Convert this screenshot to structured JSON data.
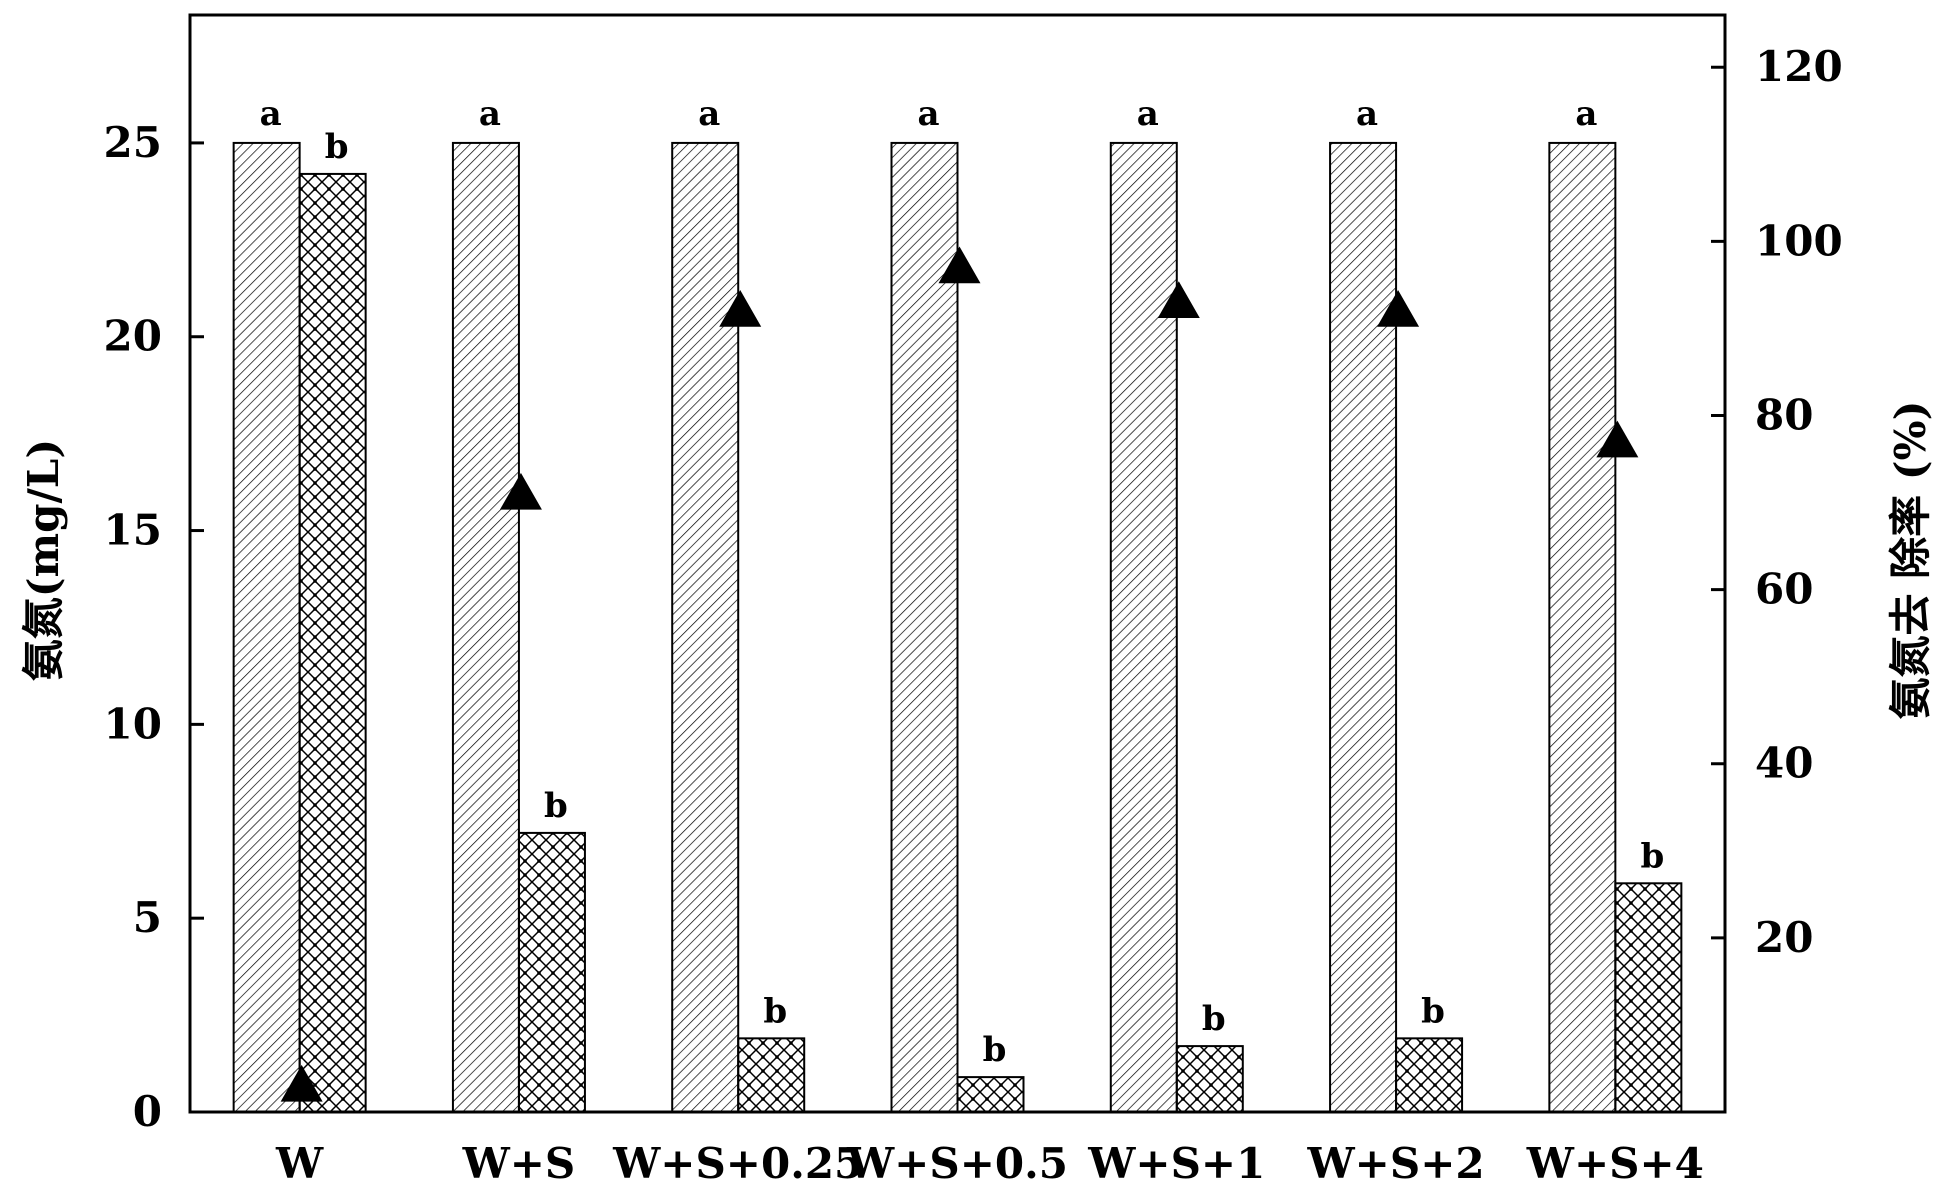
{
  "chart_data": {
    "type": "bar",
    "categories": [
      "W",
      "W+S",
      "W+S+0.25",
      "W+S+0.5",
      "W+S+1",
      "W+S+2",
      "W+S+4"
    ],
    "series": [
      {
        "values": [
          25,
          25,
          25,
          25,
          25,
          25,
          25
        ],
        "pattern": "diagonal-lines",
        "axis": "left"
      },
      {
        "values": [
          24.2,
          7.2,
          1.9,
          0.9,
          1.7,
          1.9,
          5.9
        ],
        "pattern": "crosshatch",
        "axis": "left"
      },
      {
        "values": [
          3,
          71,
          92,
          97,
          93,
          92,
          77
        ],
        "type": "scatter",
        "marker": "triangle",
        "axis": "right"
      }
    ],
    "significance_labels": {
      "series_1": [
        "a",
        "a",
        "a",
        "a",
        "a",
        "a",
        "a"
      ],
      "series_2": [
        "b",
        "b",
        "b",
        "b",
        "b",
        "b",
        "b"
      ]
    },
    "ylabel": "氨氮(mg/L)",
    "y2label": "氨氮去 除率 (%)",
    "ylim": [
      0,
      28.3
    ],
    "yticks": [
      "0",
      "5",
      "10",
      "15",
      "20",
      "25"
    ],
    "y2lim": [
      0,
      126
    ],
    "y2ticks": [
      "20",
      "40",
      "60",
      "80",
      "100",
      "120"
    ],
    "grid": false,
    "legend": "none",
    "colors": {
      "bar_fill": "#ffffff",
      "pattern": "#000000",
      "marker": "#000000"
    }
  }
}
